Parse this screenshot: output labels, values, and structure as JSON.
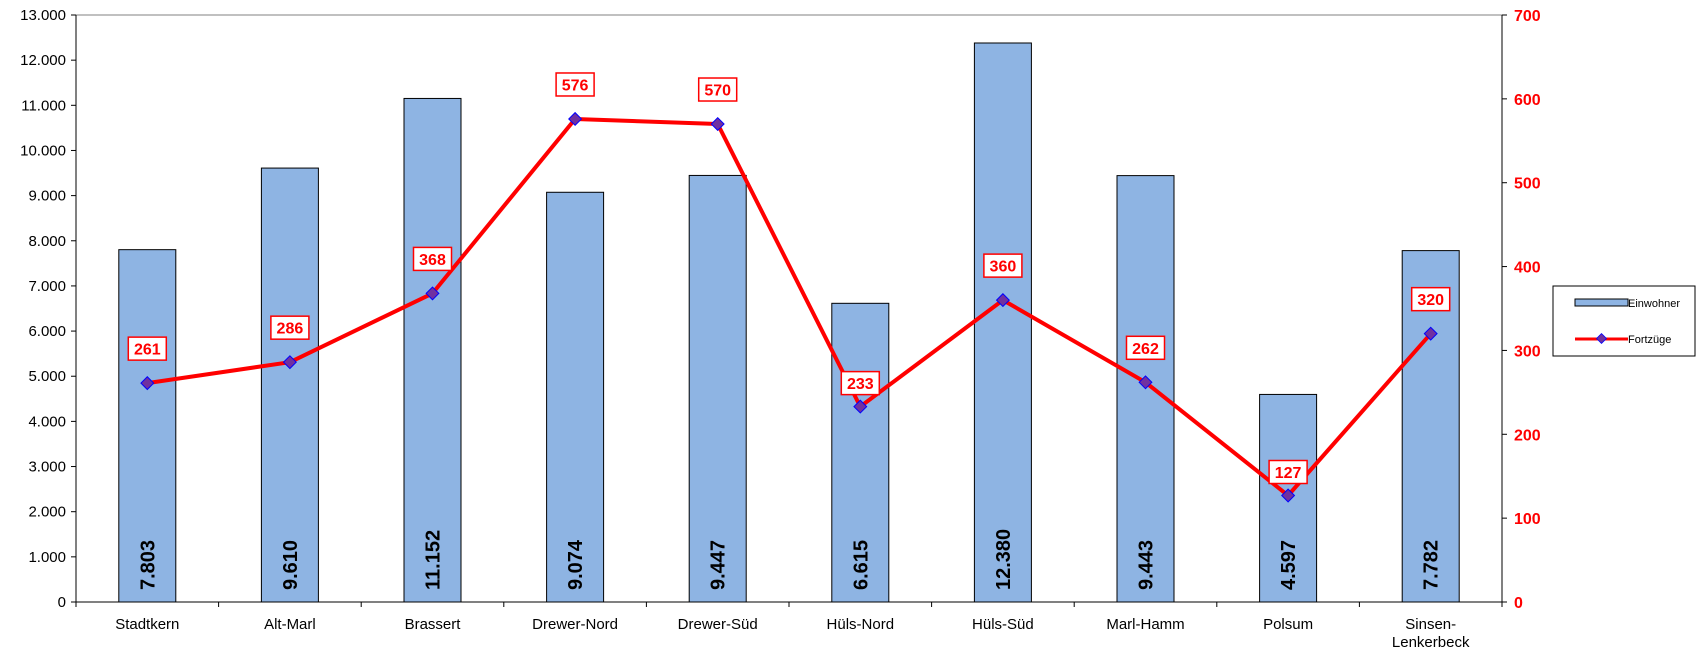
{
  "chart_data": {
    "type": "bar",
    "categories": [
      [
        "Stadtkern"
      ],
      [
        "Alt-Marl"
      ],
      [
        "Brassert"
      ],
      [
        "Drewer-Nord"
      ],
      [
        "Drewer-Süd"
      ],
      [
        "Hüls-Nord"
      ],
      [
        "Hüls-Süd"
      ],
      [
        "Marl-Hamm"
      ],
      [
        "Polsum"
      ],
      [
        "Sinsen-",
        "Lenkerbeck"
      ]
    ],
    "series": [
      {
        "name": "Einwohner",
        "type": "bar",
        "axis": "left",
        "color": "#8eb4e3",
        "values": [
          7803,
          9610,
          11152,
          9074,
          9447,
          6615,
          12380,
          9443,
          4597,
          7782
        ],
        "labels": [
          "7.803",
          "9.610",
          "11.152",
          "9.074",
          "9.447",
          "6.615",
          "12.380",
          "9.443",
          "4.597",
          "7.782"
        ]
      },
      {
        "name": "Fortzüge",
        "type": "line",
        "axis": "right",
        "color": "#ff0000",
        "marker_color": "#7030a0",
        "values": [
          261,
          286,
          368,
          576,
          570,
          233,
          360,
          262,
          127,
          320
        ],
        "labels": [
          "261",
          "286",
          "368",
          "576",
          "570",
          "233",
          "360",
          "262",
          "127",
          "320"
        ]
      }
    ],
    "y_left": {
      "min": 0,
      "max": 13000,
      "ticks": [
        "0",
        "1.000",
        "2.000",
        "3.000",
        "4.000",
        "5.000",
        "6.000",
        "7.000",
        "8.000",
        "9.000",
        "10.000",
        "11.000",
        "12.000",
        "13.000"
      ]
    },
    "y_right": {
      "min": 0,
      "max": 700,
      "ticks": [
        "0",
        "100",
        "200",
        "300",
        "400",
        "500",
        "600",
        "700"
      ]
    },
    "legend": {
      "position": "right",
      "entries": [
        "Einwohner",
        "Fortzüge"
      ]
    },
    "grid": false
  }
}
